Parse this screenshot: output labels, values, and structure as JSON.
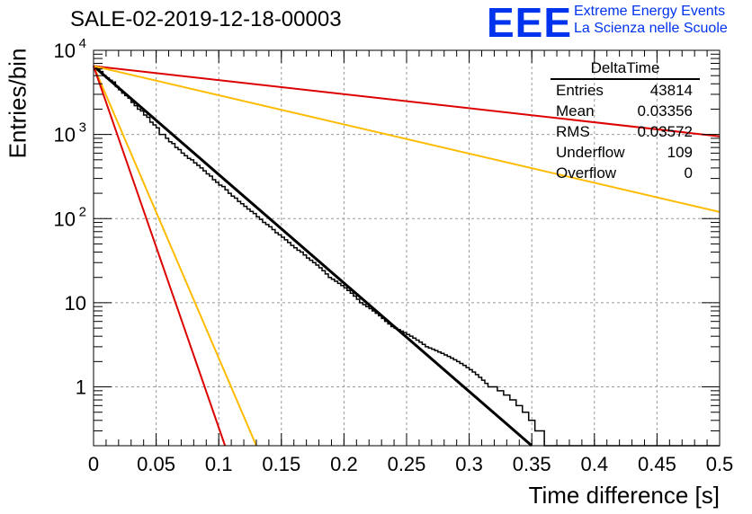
{
  "title": "SALE-02-2019-12-18-00003",
  "logo": {
    "letters": "EEE",
    "line1": "Extreme Energy Events",
    "line2": "La Scienza nelle Scuole"
  },
  "stats_box": {
    "title": "DeltaTime",
    "rows": [
      {
        "label": "Entries",
        "value": "43814"
      },
      {
        "label": "Mean",
        "value": "0.03356"
      },
      {
        "label": "RMS",
        "value": "0.03572"
      },
      {
        "label": "Underflow",
        "value": "109"
      },
      {
        "label": "Overflow",
        "value": "0"
      }
    ]
  },
  "chart_data": {
    "type": "line",
    "title": "SALE-02-2019-12-18-00003",
    "xlabel": "Time difference [s]",
    "ylabel": "Entries/bin",
    "xlim": [
      0,
      0.5
    ],
    "ylim": [
      0.2,
      10000
    ],
    "y_scale": "log",
    "grid": true,
    "x_ticks": [
      "0",
      "0.05",
      "0.1",
      "0.15",
      "0.2",
      "0.25",
      "0.3",
      "0.35",
      "0.4",
      "0.45",
      "0.5"
    ],
    "y_ticks": [
      {
        "value": 1,
        "label": "1"
      },
      {
        "value": 10,
        "label": "10"
      },
      {
        "value": 100,
        "label": "10",
        "sup": "2"
      },
      {
        "value": 1000,
        "label": "10",
        "sup": "3"
      },
      {
        "value": 10000,
        "label": "10",
        "sup": "4"
      }
    ],
    "histogram": {
      "bin_width": 0.0025,
      "color": "#000000",
      "values": [
        6500,
        6100,
        5600,
        5000,
        4700,
        4400,
        4200,
        3700,
        3400,
        3100,
        2900,
        2700,
        2400,
        2200,
        2000,
        1900,
        1700,
        1600,
        1400,
        1300,
        1200,
        1000,
        1000,
        900,
        820,
        780,
        700,
        660,
        600,
        560,
        520,
        500,
        460,
        430,
        400,
        370,
        340,
        320,
        290,
        270,
        250,
        240,
        220,
        200,
        185,
        175,
        160,
        150,
        140,
        130,
        122,
        115,
        105,
        98,
        90,
        85,
        80,
        74,
        68,
        64,
        60,
        56,
        52,
        48,
        45,
        42,
        40,
        37,
        34,
        32,
        30,
        28,
        26,
        24,
        22,
        20,
        19,
        18,
        17,
        16,
        15,
        14,
        13,
        12,
        11,
        10,
        9.5,
        9,
        8.5,
        8,
        7.5,
        7,
        6.5,
        6,
        5.6,
        5.2,
        5,
        4.8,
        4.6,
        4.4,
        4.2,
        4,
        3.8,
        3.6,
        3.4,
        3.2,
        3,
        2.9,
        2.8,
        2.7,
        2.6,
        2.5,
        2.4,
        2.3,
        2.2,
        2.1,
        2,
        1.9,
        1.8,
        1.7,
        1.6,
        1.5,
        1.4,
        1.3,
        1.2,
        1.1,
        1,
        1,
        1,
        0.9,
        0.9,
        0.8,
        0.8,
        0.7,
        0.7,
        0.6,
        0.6,
        0.5,
        0.5,
        0.4,
        0.4,
        0.3,
        0.3,
        0.3,
        0.2,
        0.2,
        0.2,
        0.2,
        0.2,
        0.2,
        0.2,
        0.2,
        0.2,
        0.2,
        0.2,
        0.2,
        0.2,
        0.2,
        0.2,
        0.2,
        0.2,
        0.2,
        0.2,
        0.2,
        0.2,
        0.2,
        0.2,
        0.2,
        0.2,
        0.2,
        0.2,
        0.2,
        0.2,
        0.2,
        0.2,
        0.2,
        0.2,
        0.2,
        0.2,
        0.2,
        0.2,
        0.2,
        0.2,
        0.2,
        0.2,
        0.2,
        0.2,
        0.2,
        0.2,
        0.2,
        0.2,
        0.2,
        0.2,
        0.2,
        0.2,
        0.2,
        0.2,
        0.2,
        0.2,
        0.2
      ]
    },
    "series": [
      {
        "color": "#000000",
        "x": [
          0,
          0.35
        ],
        "y": [
          6500,
          0.2
        ]
      },
      {
        "color": "#dd0000",
        "x": [
          0,
          0.5
        ],
        "y": [
          6500,
          950
        ]
      },
      {
        "color": "#ffbb00",
        "x": [
          0,
          0.5
        ],
        "y": [
          6500,
          120
        ]
      },
      {
        "color": "#ffbb00",
        "x": [
          0,
          0.13
        ],
        "y": [
          6500,
          0.2
        ]
      },
      {
        "color": "#dd0000",
        "x": [
          0,
          0.105
        ],
        "y": [
          6500,
          0.2
        ]
      }
    ]
  }
}
